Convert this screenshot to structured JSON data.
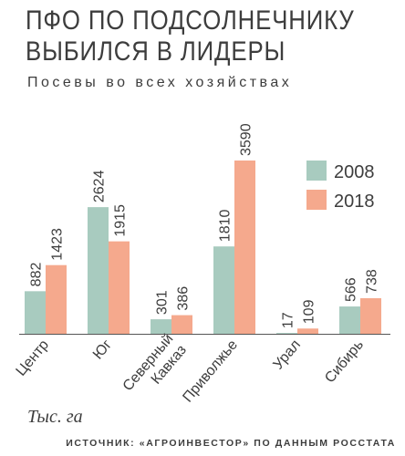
{
  "title_lines": [
    "ПФО ПО ПОДСОЛНЕЧНИКУ",
    "ВЫБИЛСЯ В ЛИДЕРЫ"
  ],
  "subtitle": "Посевы во всех хозяйствах",
  "units": "Тыс. га",
  "source": "ИСТОЧНИК: «АГРОИНВЕСТОР» ПО ДАННЫМ РОССТАТА",
  "colors": {
    "s2008": "#a8cbbf",
    "s2018": "#f5a98d",
    "axis": "#555555",
    "text": "#3d3d3d"
  },
  "chart_data": {
    "type": "bar",
    "categories": [
      "Центр",
      "Юг",
      "Северный Кавказ",
      "Приволжье",
      "Урал",
      "Сибирь"
    ],
    "series": [
      {
        "name": "2008",
        "values": [
          882,
          2624,
          301,
          1810,
          17,
          566
        ]
      },
      {
        "name": "2018",
        "values": [
          1423,
          1915,
          386,
          3590,
          109,
          738
        ]
      }
    ],
    "ylim": [
      0,
      3590
    ],
    "grid": false,
    "legend": "top-right"
  }
}
